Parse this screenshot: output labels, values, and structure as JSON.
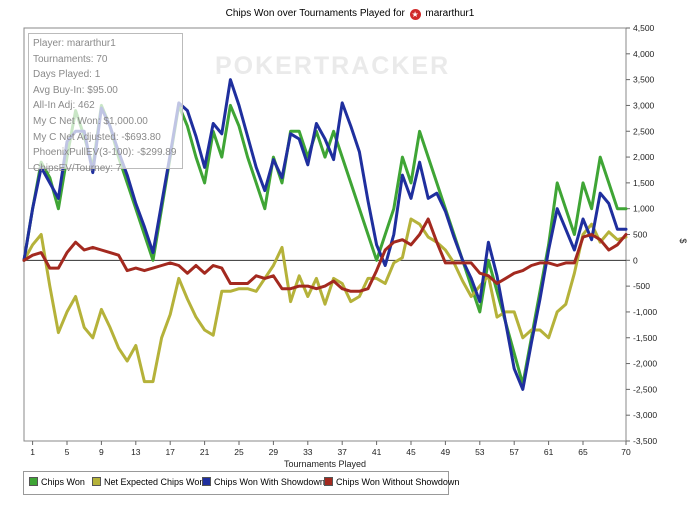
{
  "title": {
    "prefix": "Chips Won over Tournaments Played for",
    "player": "mararthur1",
    "icon": "pokerstars-icon"
  },
  "watermark": "POKERTRACKER",
  "info_panel": [
    "Player: mararthur1",
    "Tournaments: 70",
    "Days Played: 1",
    "Avg Buy-In: $95.00",
    "All-In Adj: 462",
    "My C Net Won: $1,000.00",
    "My C Net Adjusted: -$693.80",
    "PhoenixPullEV(3-100): -$299.89",
    "ChipsEV/Tourney: 7"
  ],
  "legend": [
    {
      "label": "Chips Won",
      "color": "#3fa535"
    },
    {
      "label": "Net Expected Chips Won",
      "color": "#b5b23a"
    },
    {
      "label": "Chips Won With Showdown",
      "color": "#1f2f9e"
    },
    {
      "label": "Chips Won Without Showdown",
      "color": "#a3291f"
    }
  ],
  "chart_data": {
    "type": "line",
    "title": "Chips Won over Tournaments Played for mararthur1",
    "xlabel": "Tournaments Played",
    "ylabel": "$",
    "xlim": [
      0,
      70
    ],
    "ylim": [
      -3500,
      4500
    ],
    "x_ticks": [
      1,
      5,
      9,
      13,
      17,
      21,
      25,
      29,
      33,
      37,
      41,
      45,
      49,
      53,
      57,
      61,
      65,
      70
    ],
    "y_ticks": [
      -3500,
      -3000,
      -2500,
      -2000,
      -1500,
      -1000,
      -500,
      0,
      500,
      1000,
      1500,
      2000,
      2500,
      3000,
      3500,
      4000,
      4500
    ],
    "y_tick_labels": [
      "-3,500",
      "-3,000",
      "-2,500",
      "-2,000",
      "-1,500",
      "-1,000",
      "-500",
      "0",
      "500",
      "1,000",
      "1,500",
      "2,000",
      "2,500",
      "3,000",
      "3,500",
      "4,000",
      "4,500"
    ],
    "y_axis_position": "right",
    "series": [
      {
        "name": "Chips Won",
        "color": "#3fa535",
        "x": [
          0,
          1,
          2,
          3,
          4,
          5,
          6,
          7,
          8,
          9,
          10,
          11,
          12,
          13,
          14,
          15,
          16,
          17,
          18,
          19,
          20,
          21,
          22,
          23,
          24,
          25,
          26,
          27,
          28,
          29,
          30,
          31,
          32,
          33,
          34,
          35,
          36,
          37,
          38,
          39,
          40,
          41,
          42,
          43,
          44,
          45,
          46,
          47,
          48,
          49,
          50,
          51,
          52,
          53,
          54,
          55,
          56,
          57,
          58,
          59,
          60,
          61,
          62,
          63,
          64,
          65,
          66,
          67,
          68,
          69,
          70
        ],
        "y": [
          0,
          1000,
          1900,
          1600,
          1000,
          2000,
          2900,
          2400,
          1800,
          3000,
          2600,
          2000,
          1500,
          1000,
          500,
          0,
          1000,
          2000,
          3000,
          2600,
          2000,
          1500,
          2500,
          2000,
          3000,
          2600,
          2000,
          1500,
          1000,
          2000,
          1500,
          2500,
          2500,
          2000,
          2500,
          2000,
          2500,
          2000,
          1500,
          1000,
          500,
          0,
          500,
          1000,
          2000,
          1500,
          2500,
          2000,
          1500,
          1000,
          500,
          0,
          -500,
          -1000,
          0,
          -600,
          -1200,
          -1800,
          -2400,
          -1500,
          -600,
          300,
          1500,
          1000,
          500,
          1500,
          1000,
          2000,
          1500,
          1000,
          1000
        ]
      },
      {
        "name": "Net Expected Chips Won",
        "color": "#b5b23a",
        "x": [
          0,
          1,
          2,
          3,
          4,
          5,
          6,
          7,
          8,
          9,
          10,
          11,
          12,
          13,
          14,
          15,
          16,
          17,
          18,
          19,
          20,
          21,
          22,
          23,
          24,
          25,
          26,
          27,
          28,
          29,
          30,
          31,
          32,
          33,
          34,
          35,
          36,
          37,
          38,
          39,
          40,
          41,
          42,
          43,
          44,
          45,
          46,
          47,
          48,
          49,
          50,
          51,
          52,
          53,
          54,
          55,
          56,
          57,
          58,
          59,
          60,
          61,
          62,
          63,
          64,
          65,
          66,
          67,
          68,
          69,
          70
        ],
        "y": [
          0,
          300,
          500,
          -500,
          -1400,
          -1000,
          -700,
          -1300,
          -1500,
          -950,
          -1300,
          -1700,
          -1950,
          -1650,
          -2350,
          -2350,
          -1500,
          -1050,
          -350,
          -750,
          -1100,
          -1350,
          -1450,
          -600,
          -600,
          -550,
          -550,
          -600,
          -350,
          -100,
          250,
          -800,
          -300,
          -700,
          -350,
          -850,
          -350,
          -450,
          -800,
          -700,
          -350,
          -350,
          -450,
          -50,
          50,
          800,
          700,
          450,
          350,
          200,
          -50,
          -400,
          -700,
          -500,
          -300,
          -1100,
          -1000,
          -1000,
          -1500,
          -1350,
          -1350,
          -1500,
          -1000,
          -850,
          -250,
          500,
          700,
          350,
          550,
          400,
          450
        ]
      },
      {
        "name": "Chips Won With Showdown",
        "color": "#1f2f9e",
        "x": [
          0,
          1,
          2,
          3,
          4,
          5,
          6,
          7,
          8,
          9,
          10,
          11,
          12,
          13,
          14,
          15,
          16,
          17,
          18,
          19,
          20,
          21,
          22,
          23,
          24,
          25,
          26,
          27,
          28,
          29,
          30,
          31,
          32,
          33,
          34,
          35,
          36,
          37,
          38,
          39,
          40,
          41,
          42,
          43,
          44,
          45,
          46,
          47,
          48,
          49,
          50,
          51,
          52,
          53,
          54,
          55,
          56,
          57,
          58,
          59,
          60,
          61,
          62,
          63,
          64,
          65,
          66,
          67,
          68,
          69,
          70
        ],
        "y": [
          0,
          1000,
          1800,
          1500,
          1200,
          2300,
          2500,
          2500,
          1700,
          2950,
          2600,
          2100,
          1650,
          1100,
          650,
          150,
          1100,
          2050,
          3050,
          2900,
          2400,
          1800,
          2650,
          2450,
          3500,
          3000,
          2400,
          1800,
          1350,
          1950,
          1600,
          2450,
          2350,
          1850,
          2650,
          2350,
          1950,
          3050,
          2600,
          2100,
          1150,
          300,
          -100,
          500,
          1650,
          1200,
          1900,
          1200,
          1300,
          950,
          450,
          0,
          -350,
          -800,
          350,
          -300,
          -1200,
          -2100,
          -2500,
          -1600,
          -750,
          200,
          1000,
          600,
          200,
          800,
          400,
          1300,
          1100,
          600,
          600
        ]
      },
      {
        "name": "Chips Won Without Showdown",
        "color": "#a3291f",
        "x": [
          0,
          1,
          2,
          3,
          4,
          5,
          6,
          7,
          8,
          9,
          10,
          11,
          12,
          13,
          14,
          15,
          16,
          17,
          18,
          19,
          20,
          21,
          22,
          23,
          24,
          25,
          26,
          27,
          28,
          29,
          30,
          31,
          32,
          33,
          34,
          35,
          36,
          37,
          38,
          39,
          40,
          41,
          42,
          43,
          44,
          45,
          46,
          47,
          48,
          49,
          50,
          51,
          52,
          53,
          54,
          55,
          56,
          57,
          58,
          59,
          60,
          61,
          62,
          63,
          64,
          65,
          66,
          67,
          68,
          69,
          70
        ],
        "y": [
          0,
          100,
          150,
          -150,
          -150,
          150,
          350,
          200,
          250,
          200,
          150,
          100,
          -200,
          -150,
          -200,
          -150,
          -100,
          -50,
          -100,
          -250,
          -100,
          -250,
          -100,
          -150,
          -450,
          -450,
          -450,
          -300,
          -350,
          -300,
          -550,
          -550,
          -500,
          -500,
          -550,
          -500,
          -400,
          -550,
          -600,
          -600,
          -550,
          -200,
          200,
          350,
          400,
          300,
          500,
          800,
          350,
          -50,
          -50,
          -50,
          -50,
          -250,
          -300,
          -450,
          -350,
          -250,
          -200,
          -100,
          -50,
          -50,
          -100,
          -50,
          -50,
          450,
          500,
          400,
          200,
          300,
          500
        ]
      }
    ]
  }
}
